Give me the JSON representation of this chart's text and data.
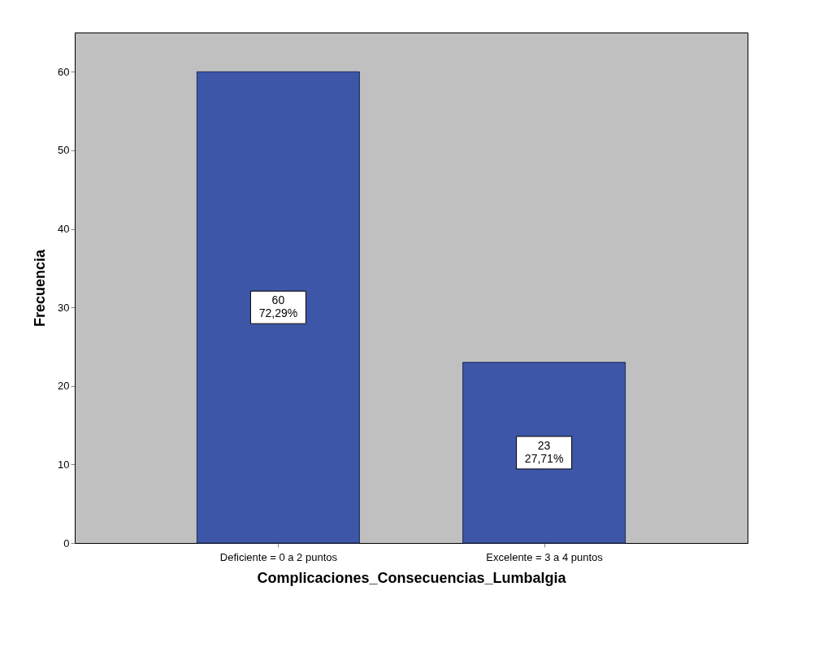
{
  "chart_data": {
    "type": "bar",
    "xlabel": "Complicaciones_Consecuencias_Lumbalgia",
    "ylabel": "Frecuencia",
    "categories": [
      "Deficiente = 0 a 2 puntos",
      "Excelente = 3 a 4 puntos"
    ],
    "values": [
      60,
      23
    ],
    "color": "#3d56a8",
    "value_labels": [
      "60\n72,29%",
      "23\n27,71%"
    ],
    "ylim": [
      0,
      65
    ],
    "yticks": [
      0,
      10,
      20,
      30,
      40,
      50,
      60
    ],
    "grid": false
  }
}
